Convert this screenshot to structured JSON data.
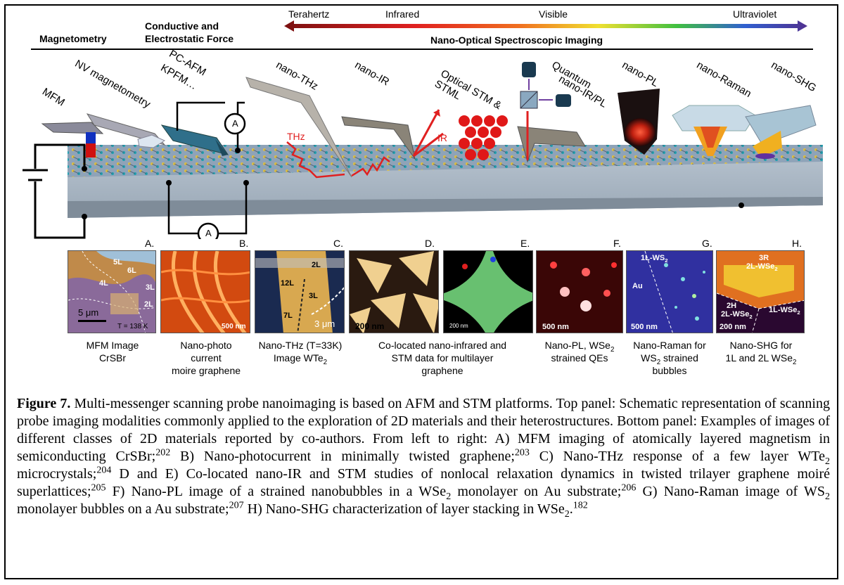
{
  "header": {
    "magnetometry": "Magnetometry",
    "conductive_line1": "Conductive and",
    "conductive_line2": "Electrostatic Force",
    "nano_optical": "Nano-Optical Spectroscopic Imaging"
  },
  "spectrum": {
    "terahertz": "Terahertz",
    "infrared": "Infrared",
    "visible": "Visible",
    "ultraviolet": "Ultraviolet"
  },
  "techniques": {
    "mfm": "MFM",
    "nv": "NV magnetometry",
    "pcafm": "PC-AFM",
    "kpfm": "KPFM…",
    "nano_thz": "nano-THz",
    "nano_ir": "nano-IR",
    "optical_stm_line1": "Optical STM &",
    "optical_stm_line2": "STML",
    "quantum_line1": "Quantum",
    "quantum_line2": "nano-IR/PL",
    "nano_pl": "nano-PL",
    "nano_raman": "nano-Raman",
    "nano_shg": "nano-SHG"
  },
  "schematic_labels": {
    "thz": "THz",
    "ir": "IR",
    "ammeter": "A"
  },
  "panels": [
    {
      "letter": "A.",
      "labels": [
        "5L",
        "6L",
        "4L",
        "3L",
        "2L",
        "5 μm",
        "T = 138 K"
      ],
      "caption_lines": [
        "MFM Image",
        "CrSBr"
      ]
    },
    {
      "letter": "B.",
      "labels": [
        "500 nm"
      ],
      "caption_lines": [
        "Nano-photo",
        "current",
        "moire graphene"
      ]
    },
    {
      "letter": "C.",
      "labels": [
        "2L",
        "12L",
        "3L",
        "7L",
        "3 μm"
      ],
      "caption_lines": [
        "Nano-THz (T=33K)",
        "Image WTe"
      ],
      "caption_sub": "2"
    },
    {
      "letter": "D.",
      "labels": [
        "200 nm"
      ],
      "caption_lines": [
        "Co-located nano-infrared  and",
        "STM data for multilayer",
        "graphene"
      ]
    },
    {
      "letter": "E.",
      "labels": [
        "200 nm"
      ]
    },
    {
      "letter": "F.",
      "labels": [
        "500 nm"
      ],
      "caption_lines": [
        "Nano-PL, WSe",
        "strained QEs"
      ],
      "caption_sub": "2"
    },
    {
      "letter": "G.",
      "labels": [
        "1L-WS",
        "Au",
        "500 nm"
      ],
      "label_sub": "2",
      "caption_lines": [
        "Nano-Raman for",
        "WS",
        " strained",
        "bubbles"
      ],
      "caption_sub": "2"
    },
    {
      "letter": "H.",
      "labels": [
        "3R",
        "2L-WSe",
        "2H",
        "2L-WSe",
        "1L-WSe",
        "200 nm"
      ],
      "label_sub": "2",
      "caption_lines": [
        "Nano-SHG for",
        "1L and 2L WSe"
      ],
      "caption_sub": "2"
    }
  ],
  "figure_caption": {
    "label": "Figure 7.",
    "t1": "  Multi-messenger scanning probe nanoimaging is based on AFM and STM platforms. Top panel: Schematic representation of scanning probe imaging modalities commonly applied to the exploration of 2D materials and their heterostructures. Bottom panel: Examples of images of different classes of 2D materials reported by co-authors. From left to right: A) MFM imaging of atomically layered magnetism in semiconducting CrSBr;",
    "r1": "202",
    "t2": " B) Nano-photocurrent in minimally twisted graphene;",
    "r2": "203",
    "t3": " C) Nano-THz response of a few layer WTe",
    "sub2": "2",
    "t4": " microcrystals;",
    "r3": "204",
    "t5": " D and E) Co-located nano-IR and STM studies of nonlocal relaxation dynamics in twisted trilayer graphene moiré superlattices;",
    "r4": "205",
    "t6": " F) Nano-PL image of a strained nanobubbles in a WSe",
    "t7": " monolayer on Au substrate;",
    "r5": "206",
    "t8": " G) Nano-Raman image of WS",
    "t9": " monolayer bubbles on a Au substrate;",
    "r6": "207",
    "t10": " H) Nano-SHG characterization of layer stacking in WSe",
    "t11": ".",
    "r7": "182"
  }
}
